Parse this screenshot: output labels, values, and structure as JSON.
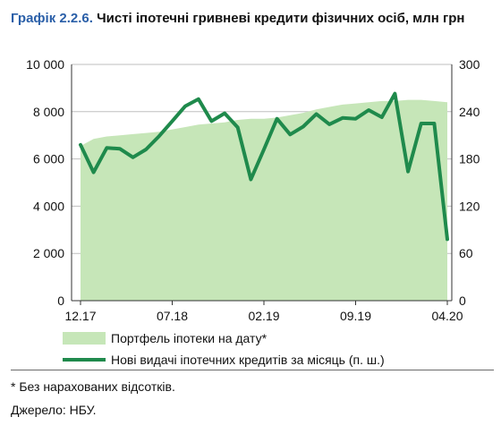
{
  "header": {
    "number": "Графік 2.2.6.",
    "text": "Чисті іпотечні гривневі кредити фізичних осіб, млн грн"
  },
  "footnotes": {
    "note": "* Без нарахованих відсотків.",
    "source": "Джерело: НБУ."
  },
  "colors": {
    "area": "#c6e6b8",
    "line": "#1f8a4c",
    "title_number": "#2a5fa8"
  },
  "chart_data": {
    "type": "area+line",
    "x_tick_labels": [
      "12.17",
      "07.18",
      "02.19",
      "09.19",
      "04.20"
    ],
    "x_tick_indices": [
      0,
      7,
      14,
      21,
      28
    ],
    "y_left_ticks": [
      "0",
      "2 000",
      "4 000",
      "6 000",
      "8 000",
      "10 000"
    ],
    "y_left_lim": [
      0,
      10000
    ],
    "y_right_ticks": [
      "0",
      "60",
      "120",
      "180",
      "240",
      "300"
    ],
    "y_right_lim": [
      0,
      300
    ],
    "grid": "horizontal",
    "legend_position": "bottom",
    "series": [
      {
        "name": "Портфель іпотеки на дату*",
        "kind": "area",
        "axis": "left",
        "values": [
          6550,
          6850,
          6950,
          7000,
          7050,
          7100,
          7150,
          7250,
          7350,
          7450,
          7500,
          7550,
          7650,
          7700,
          7700,
          7750,
          7850,
          7950,
          8100,
          8200,
          8300,
          8350,
          8400,
          8450,
          8450,
          8500,
          8500,
          8450,
          8400
        ]
      },
      {
        "name": "Нові видачі іпотечних кредитів за місяць (п. ш.)",
        "kind": "line",
        "axis": "right",
        "values": [
          198,
          163,
          194,
          193,
          182,
          192,
          209,
          228,
          247,
          256,
          228,
          238,
          220,
          154,
          192,
          231,
          211,
          221,
          237,
          224,
          232,
          231,
          242,
          233,
          263,
          164,
          225,
          225,
          78
        ]
      }
    ]
  }
}
